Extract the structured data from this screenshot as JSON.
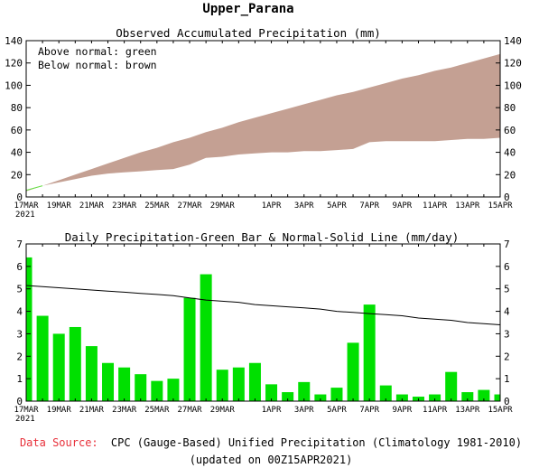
{
  "page": {
    "region_title": "Upper_Parana",
    "footer_source_label": "Data Source:",
    "footer_source_text": "CPC (Gauge-Based) Unified Precipitation (Climatology 1981-2010)",
    "footer_updated": "(updated on 00Z15APR2021)",
    "colors": {
      "source_label": "#e8303a",
      "envelope": "#c4a093",
      "observed_bar": "#00e000",
      "normal_line": "#000000",
      "observed_line": "#66dd44"
    }
  },
  "chart_data": [
    {
      "type": "area",
      "title": "Observed Accumulated Precipitation (mm)",
      "legend_lines": [
        "Above normal: green",
        "Below normal: brown"
      ],
      "ylim": [
        0,
        140
      ],
      "yticks": [
        0,
        20,
        40,
        60,
        80,
        100,
        120,
        140
      ],
      "x_start": "17MAR",
      "x_end": "15APR",
      "year_label": "2021",
      "xtick_labels": [
        "17MAR",
        "19MAR",
        "21MAR",
        "23MAR",
        "25MAR",
        "27MAR",
        "29MAR",
        "1APR",
        "3APR",
        "5APR",
        "7APR",
        "9APR",
        "11APR",
        "13APR",
        "15APR"
      ],
      "dates": [
        "17MAR",
        "18MAR",
        "19MAR",
        "20MAR",
        "21MAR",
        "22MAR",
        "23MAR",
        "24MAR",
        "25MAR",
        "26MAR",
        "27MAR",
        "28MAR",
        "29MAR",
        "30MAR",
        "31MAR",
        "1APR",
        "2APR",
        "3APR",
        "4APR",
        "5APR",
        "6APR",
        "7APR",
        "8APR",
        "9APR",
        "10APR",
        "11APR",
        "12APR",
        "13APR",
        "14APR",
        "15APR"
      ],
      "series": [
        {
          "name": "Normal",
          "values": [
            5,
            10,
            15,
            20,
            25,
            30,
            35,
            40,
            44,
            49,
            53,
            58,
            62,
            67,
            71,
            75,
            79,
            83,
            87,
            91,
            94,
            98,
            102,
            106,
            109,
            113,
            116,
            120,
            124,
            128
          ]
        },
        {
          "name": "Observed",
          "values": [
            6,
            10,
            13,
            16,
            19,
            21,
            22,
            23,
            24,
            25,
            29,
            35,
            36,
            38,
            39,
            40,
            40,
            41,
            41,
            42,
            43,
            49,
            50,
            50,
            50,
            50,
            51,
            52,
            52,
            53
          ]
        }
      ]
    },
    {
      "type": "bar",
      "title": "Daily Precipitation-Green Bar & Normal-Solid Line (mm/day)",
      "ylim": [
        0,
        7
      ],
      "yticks": [
        0,
        1,
        2,
        3,
        4,
        5,
        6,
        7
      ],
      "x_start": "17MAR",
      "x_end": "15APR",
      "year_label": "2021",
      "xtick_labels": [
        "17MAR",
        "19MAR",
        "21MAR",
        "23MAR",
        "25MAR",
        "27MAR",
        "29MAR",
        "1APR",
        "3APR",
        "5APR",
        "7APR",
        "9APR",
        "11APR",
        "13APR",
        "15APR"
      ],
      "dates": [
        "17MAR",
        "18MAR",
        "19MAR",
        "20MAR",
        "21MAR",
        "22MAR",
        "23MAR",
        "24MAR",
        "25MAR",
        "26MAR",
        "27MAR",
        "28MAR",
        "29MAR",
        "30MAR",
        "31MAR",
        "1APR",
        "2APR",
        "3APR",
        "4APR",
        "5APR",
        "6APR",
        "7APR",
        "8APR",
        "9APR",
        "10APR",
        "11APR",
        "12APR",
        "13APR",
        "14APR",
        "15APR"
      ],
      "series": [
        {
          "name": "Observed",
          "values": [
            6.4,
            3.8,
            3.0,
            3.3,
            2.45,
            1.7,
            1.5,
            1.2,
            0.9,
            1.0,
            4.6,
            5.65,
            1.4,
            1.5,
            1.7,
            0.75,
            0.4,
            0.85,
            0.3,
            0.6,
            2.6,
            4.3,
            0.7,
            0.3,
            0.2,
            0.3,
            1.3,
            0.4,
            0.5,
            0.3
          ]
        },
        {
          "name": "Normal",
          "values": [
            5.15,
            5.1,
            5.05,
            5.0,
            4.95,
            4.9,
            4.85,
            4.8,
            4.75,
            4.7,
            4.6,
            4.5,
            4.45,
            4.4,
            4.3,
            4.25,
            4.2,
            4.15,
            4.1,
            4.0,
            3.95,
            3.9,
            3.85,
            3.8,
            3.7,
            3.65,
            3.6,
            3.5,
            3.45,
            3.4
          ]
        }
      ]
    }
  ]
}
